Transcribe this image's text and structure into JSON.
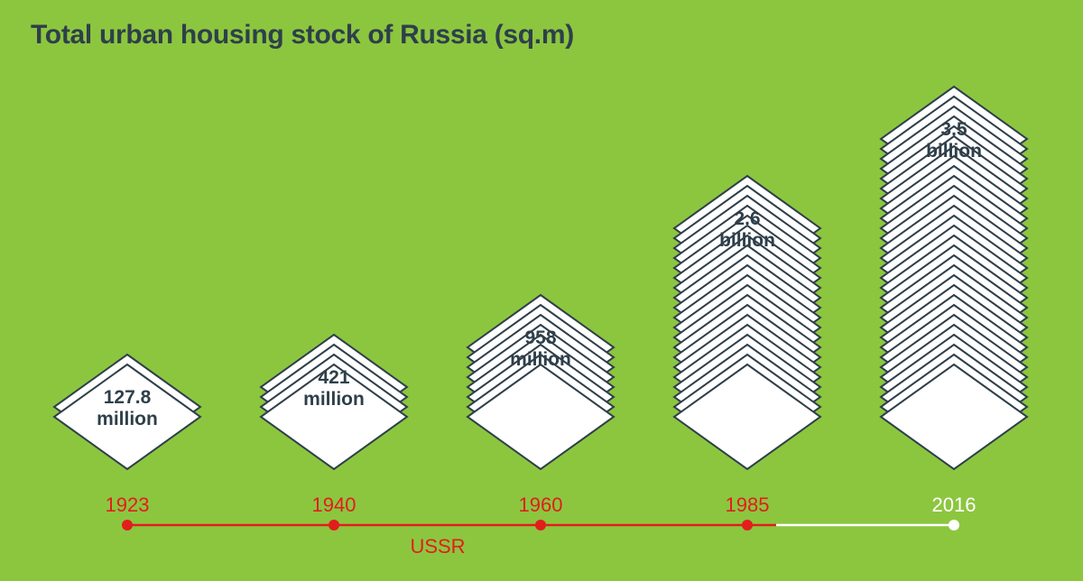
{
  "colors": {
    "background": "#8cc63f",
    "tile_fill": "#ffffff",
    "tile_stroke": "#2e3f4a",
    "label_text": "#2e3f4a",
    "ussr_timeline": "#e21d1d",
    "post_ussr_timeline": "#ffffff"
  },
  "chart_data": {
    "type": "bar",
    "title": "Total urban housing stock of Russia (sq.m)",
    "xlabel": "",
    "ylabel": "",
    "categories": [
      "1923",
      "1940",
      "1960",
      "1985",
      "2016"
    ],
    "values": [
      127.8,
      421,
      958,
      2600,
      3500
    ],
    "unit": "million sq.m",
    "value_labels": [
      [
        "127.8",
        "million"
      ],
      [
        "421",
        "million"
      ],
      [
        "958",
        "million"
      ],
      [
        "2.6",
        "billion"
      ],
      [
        "3.5",
        "billion"
      ]
    ],
    "layers": [
      2,
      4,
      8,
      20,
      29
    ],
    "era_labels": [
      "USSR",
      "USSR",
      "USSR",
      "USSR",
      ""
    ],
    "timeline_label": "USSR",
    "grid": false,
    "legend": "none"
  }
}
